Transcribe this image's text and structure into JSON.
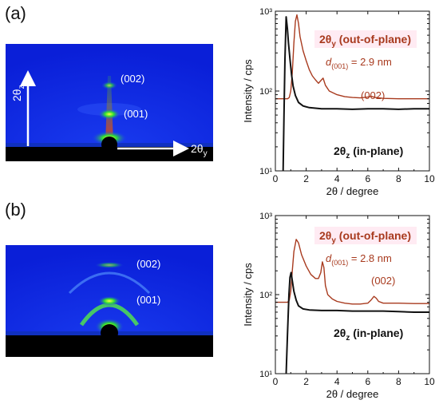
{
  "panels": [
    {
      "letter": "(a)",
      "image": {
        "peak_labels": [
          "(002)",
          "(001)"
        ],
        "axis_z_label": "2θ",
        "axis_z_sub": "z",
        "axis_y_label": "2θ",
        "axis_y_sub": "y"
      },
      "chart_data": {
        "type": "line",
        "xlabel": "2θ / degree",
        "ylabel": "Intensity / cps",
        "xlim": [
          0,
          10
        ],
        "ylim": [
          10,
          1000
        ],
        "yscale": "log",
        "x_ticks": [
          "0",
          "2",
          "4",
          "6",
          "8",
          "10"
        ],
        "y_ticks": [
          "10¹",
          "10²",
          "10³"
        ],
        "series": [
          {
            "name": "2θy (out-of-plane)",
            "color": "#a83a1e",
            "points": [
              [
                0.0,
                80
              ],
              [
                0.3,
                80
              ],
              [
                0.6,
                80
              ],
              [
                0.8,
                80
              ],
              [
                0.9,
                83
              ],
              [
                1.0,
                100
              ],
              [
                1.1,
                170
              ],
              [
                1.2,
                400
              ],
              [
                1.3,
                750
              ],
              [
                1.4,
                900
              ],
              [
                1.5,
                700
              ],
              [
                1.6,
                480
              ],
              [
                1.8,
                320
              ],
              [
                2.0,
                240
              ],
              [
                2.2,
                185
              ],
              [
                2.4,
                155
              ],
              [
                2.6,
                138
              ],
              [
                2.8,
                125
              ],
              [
                2.95,
                135
              ],
              [
                3.1,
                145
              ],
              [
                3.25,
                118
              ],
              [
                3.5,
                100
              ],
              [
                4.0,
                90
              ],
              [
                4.5,
                85
              ],
              [
                5.0,
                83
              ],
              [
                5.5,
                82
              ],
              [
                6.0,
                84
              ],
              [
                6.2,
                86
              ],
              [
                6.5,
                83
              ],
              [
                7.0,
                81
              ],
              [
                8.0,
                80
              ],
              [
                9.0,
                80
              ],
              [
                10.0,
                80
              ]
            ]
          },
          {
            "name": "2θz (in-plane)",
            "color": "#111111",
            "points": [
              [
                0.5,
                10
              ],
              [
                0.56,
                50
              ],
              [
                0.62,
                250
              ],
              [
                0.7,
                850
              ],
              [
                0.78,
                600
              ],
              [
                0.85,
                400
              ],
              [
                0.95,
                250
              ],
              [
                1.05,
                160
              ],
              [
                1.15,
                115
              ],
              [
                1.3,
                88
              ],
              [
                1.5,
                72
              ],
              [
                1.8,
                65
              ],
              [
                2.2,
                62
              ],
              [
                3.0,
                60
              ],
              [
                4.0,
                60
              ],
              [
                5.0,
                59
              ],
              [
                6.0,
                60
              ],
              [
                7.0,
                60
              ],
              [
                8.0,
                59
              ],
              [
                9.0,
                60
              ],
              [
                10.0,
                60
              ]
            ]
          }
        ],
        "legend_out": {
          "base": "2θ",
          "sub": "y",
          "suffix": " (out-of-plane)"
        },
        "legend_in": {
          "base": "2θ",
          "sub": "z",
          "suffix": " (in-plane)"
        },
        "annotations": {
          "d_spacing": {
            "pre": "d",
            "sub": "(001)",
            "post": " = 2.9 nm"
          },
          "peak": "(002)"
        }
      }
    },
    {
      "letter": "(b)",
      "image": {
        "peak_labels": [
          "(002)",
          "(001)"
        ]
      },
      "chart_data": {
        "type": "line",
        "xlabel": "2θ / degree",
        "ylabel": "Intensity / cps",
        "xlim": [
          0,
          10
        ],
        "ylim": [
          10,
          1000
        ],
        "yscale": "log",
        "x_ticks": [
          "0",
          "2",
          "4",
          "6",
          "8",
          "10"
        ],
        "y_ticks": [
          "10¹",
          "10²",
          "10³"
        ],
        "series": [
          {
            "name": "2θy (out-of-plane)",
            "color": "#a83a1e",
            "points": [
              [
                0.0,
                80
              ],
              [
                0.5,
                80
              ],
              [
                0.8,
                80
              ],
              [
                0.9,
                85
              ],
              [
                1.0,
                110
              ],
              [
                1.1,
                200
              ],
              [
                1.2,
                350
              ],
              [
                1.35,
                500
              ],
              [
                1.5,
                450
              ],
              [
                1.7,
                320
              ],
              [
                2.0,
                230
              ],
              [
                2.3,
                180
              ],
              [
                2.6,
                160
              ],
              [
                2.8,
                160
              ],
              [
                2.95,
                190
              ],
              [
                3.05,
                260
              ],
              [
                3.15,
                220
              ],
              [
                3.25,
                130
              ],
              [
                3.4,
                100
              ],
              [
                3.7,
                88
              ],
              [
                4.0,
                82
              ],
              [
                4.5,
                78
              ],
              [
                5.0,
                76
              ],
              [
                5.5,
                76
              ],
              [
                6.0,
                78
              ],
              [
                6.2,
                85
              ],
              [
                6.4,
                95
              ],
              [
                6.55,
                90
              ],
              [
                6.7,
                82
              ],
              [
                7.0,
                78
              ],
              [
                8.0,
                78
              ],
              [
                9.0,
                77
              ],
              [
                10.0,
                77
              ]
            ]
          },
          {
            "name": "2θz (in-plane)",
            "color": "#111111",
            "points": [
              [
                0.7,
                10
              ],
              [
                0.78,
                30
              ],
              [
                0.88,
                100
              ],
              [
                0.95,
                165
              ],
              [
                1.02,
                190
              ],
              [
                1.1,
                150
              ],
              [
                1.2,
                110
              ],
              [
                1.35,
                85
              ],
              [
                1.5,
                72
              ],
              [
                1.8,
                66
              ],
              [
                2.2,
                64
              ],
              [
                3.0,
                63
              ],
              [
                4.0,
                63
              ],
              [
                5.0,
                62
              ],
              [
                6.0,
                62
              ],
              [
                7.0,
                62
              ],
              [
                8.0,
                61
              ],
              [
                9.0,
                60
              ],
              [
                10.0,
                60
              ]
            ]
          }
        ],
        "legend_out": {
          "base": "2θ",
          "sub": "y",
          "suffix": " (out-of-plane)"
        },
        "legend_in": {
          "base": "2θ",
          "sub": "z",
          "suffix": " (in-plane)"
        },
        "annotations": {
          "d_spacing": {
            "pre": "d",
            "sub": "(001)",
            "post": " = 2.8 nm"
          },
          "peak": "(002)"
        }
      }
    }
  ]
}
